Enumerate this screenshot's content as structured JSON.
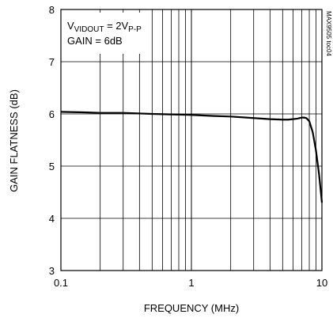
{
  "chart_data": {
    "type": "line",
    "title": "",
    "xlabel": "FREQUENCY (MHz)",
    "ylabel": "GAIN FLATNESS (dB)",
    "x_scale": "log",
    "xlim": [
      0.1,
      10
    ],
    "ylim": [
      3,
      8
    ],
    "grid": true,
    "x_ticks": [
      0.1,
      1,
      10
    ],
    "x_tick_labels": [
      "0.1",
      "1",
      "10"
    ],
    "y_ticks": [
      3,
      4,
      5,
      6,
      7,
      8
    ],
    "y_tick_labels": [
      "3",
      "4",
      "5",
      "6",
      "7",
      "8"
    ],
    "annotation": {
      "line1": {
        "prefix": "V",
        "sub1": "VIDOUT",
        "mid": " = 2V",
        "sub2": "P-P"
      },
      "line2": "GAIN = 6dB"
    },
    "side_label": "MAX9505 toc04",
    "series": [
      {
        "line_color": "#000000",
        "x": [
          0.1,
          0.15,
          0.2,
          0.3,
          0.5,
          0.7,
          1,
          1.5,
          2,
          3,
          4,
          5,
          5.5,
          6,
          6.5,
          7,
          7.3,
          7.6,
          8,
          8.5,
          9,
          9.5,
          10
        ],
        "y": [
          6.04,
          6.03,
          6.02,
          6.02,
          6.0,
          5.99,
          5.98,
          5.96,
          5.95,
          5.92,
          5.9,
          5.89,
          5.89,
          5.9,
          5.91,
          5.93,
          5.93,
          5.92,
          5.86,
          5.65,
          5.3,
          4.85,
          4.3
        ]
      }
    ]
  }
}
